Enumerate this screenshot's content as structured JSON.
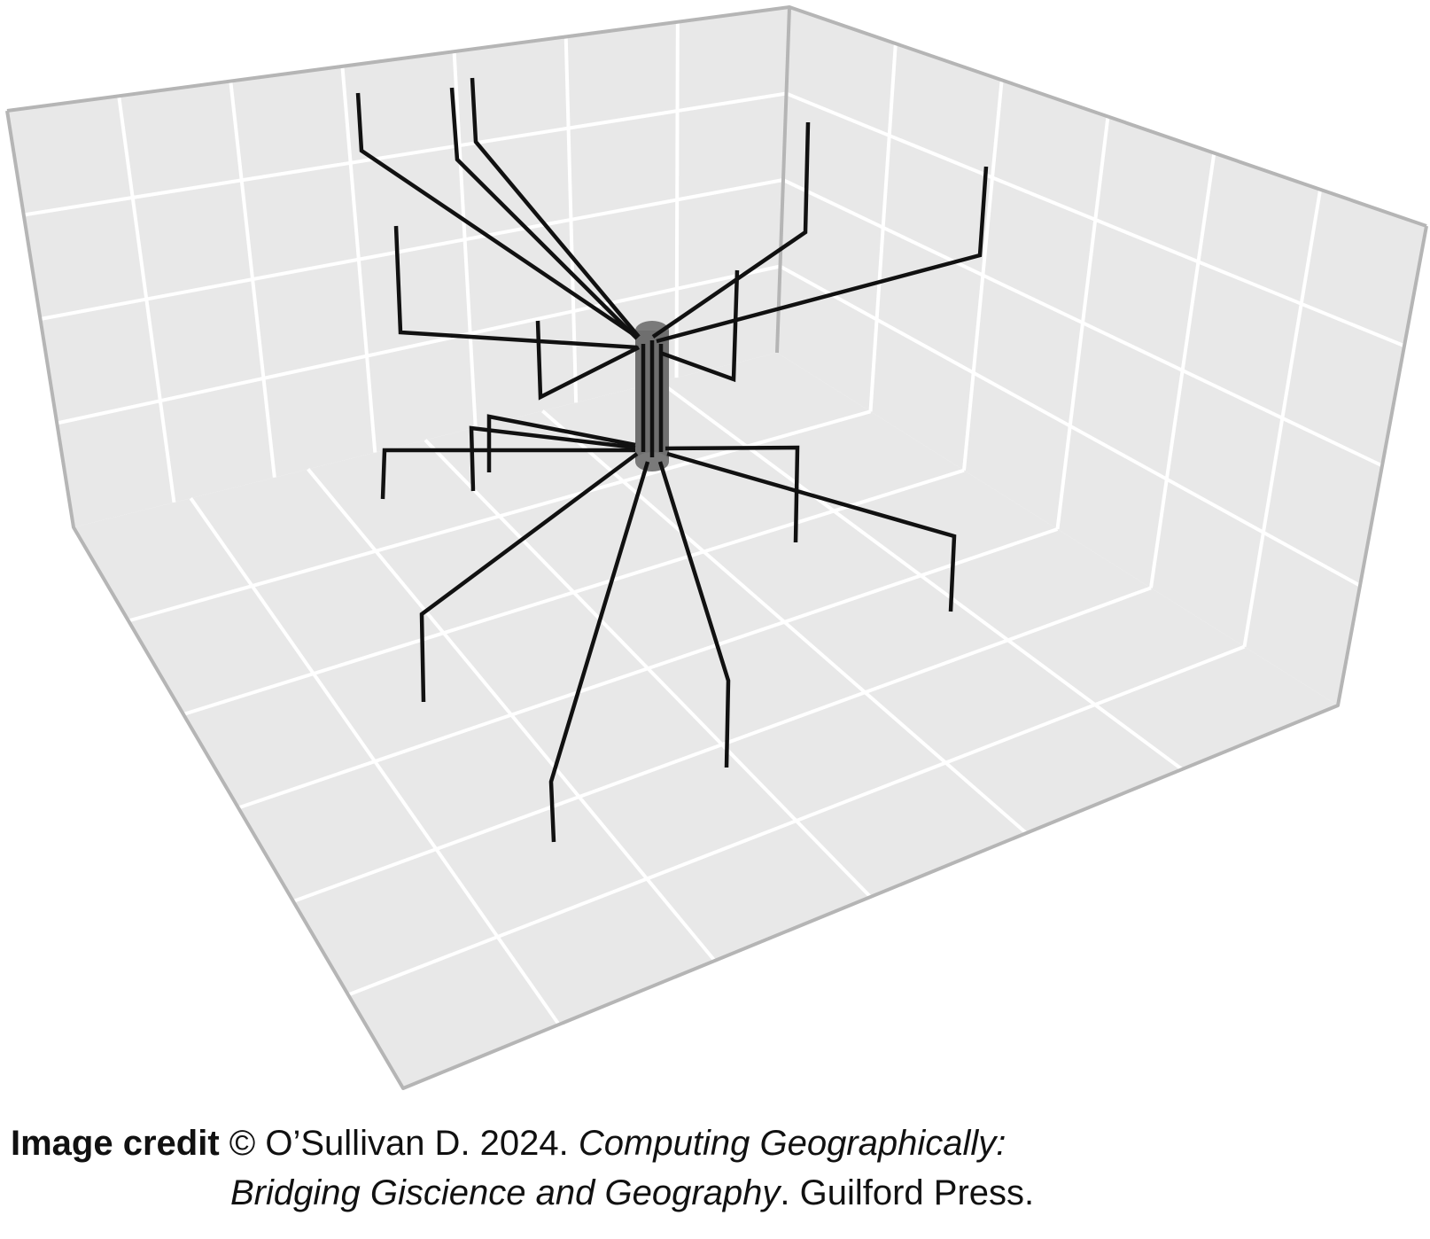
{
  "figure": {
    "description_kind": "3d-rendered branching structure in a gridded box",
    "colors": {
      "panel": "#e8e8e8",
      "grid": "#ffffff",
      "frame": "#b5b5b5",
      "branch": "#111111",
      "trunk": "#777777"
    }
  },
  "credit": {
    "label": "Image credit",
    "author": "© O’Sullivan D. 2024.",
    "title_part1": "Computing Geographically:",
    "title_part2": "Bridging Giscience and Geography",
    "publisher": ". Guilford Press."
  }
}
